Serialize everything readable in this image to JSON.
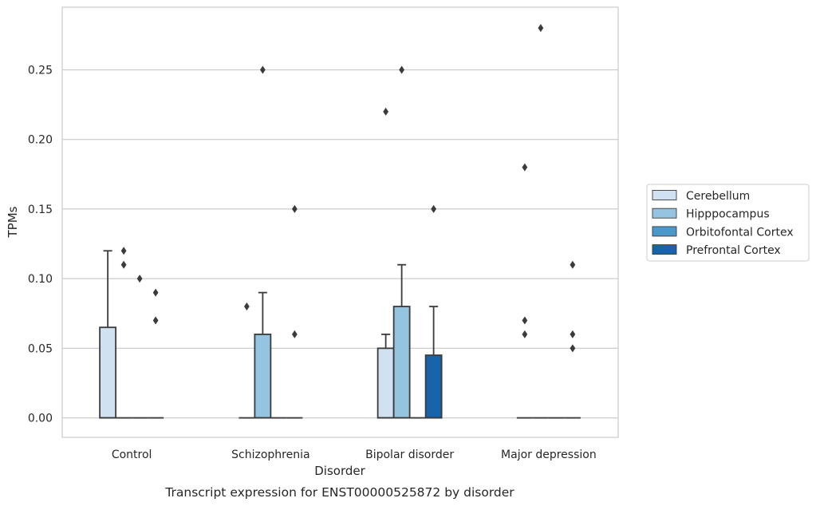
{
  "chart_data": {
    "type": "box",
    "title": "",
    "caption": "Transcript expression for ENST00000525872 by disorder",
    "xlabel": "Disorder",
    "ylabel": "TPMs",
    "ylim": [
      -0.014,
      0.295
    ],
    "yticks": [
      0.0,
      0.05,
      0.1,
      0.15,
      0.2,
      0.25
    ],
    "ytick_labels": [
      "0.00",
      "0.05",
      "0.10",
      "0.15",
      "0.20",
      "0.25"
    ],
    "grid": true,
    "legend_position": "right",
    "categories": [
      "Control",
      "Schizophrenia",
      "Bipolar disorder",
      "Major depression"
    ],
    "series": [
      {
        "name": "Cerebellum",
        "color": "#d0e1f2",
        "boxes": [
          {
            "q1": 0.0,
            "median": 0.0,
            "q3": 0.065,
            "whisker_low": 0.0,
            "whisker_high": 0.12,
            "outliers": []
          },
          {
            "q1": 0.0,
            "median": 0.0,
            "q3": 0.0,
            "whisker_low": 0.0,
            "whisker_high": 0.0,
            "outliers": [
              0.08
            ]
          },
          {
            "q1": 0.0,
            "median": 0.0,
            "q3": 0.05,
            "whisker_low": 0.0,
            "whisker_high": 0.06,
            "outliers": [
              0.22
            ]
          },
          {
            "q1": 0.0,
            "median": 0.0,
            "q3": 0.0,
            "whisker_low": 0.0,
            "whisker_high": 0.0,
            "outliers": [
              0.18,
              0.07,
              0.06
            ]
          }
        ]
      },
      {
        "name": "Hipppocampus",
        "color": "#94c4df",
        "boxes": [
          {
            "q1": 0.0,
            "median": 0.0,
            "q3": 0.0,
            "whisker_low": 0.0,
            "whisker_high": 0.0,
            "outliers": [
              0.12,
              0.11
            ]
          },
          {
            "q1": 0.0,
            "median": 0.0,
            "q3": 0.06,
            "whisker_low": 0.0,
            "whisker_high": 0.09,
            "outliers": [
              0.25
            ]
          },
          {
            "q1": 0.0,
            "median": 0.0,
            "q3": 0.08,
            "whisker_low": 0.0,
            "whisker_high": 0.11,
            "outliers": [
              0.25
            ]
          },
          {
            "q1": 0.0,
            "median": 0.0,
            "q3": 0.0,
            "whisker_low": 0.0,
            "whisker_high": 0.0,
            "outliers": [
              0.28
            ]
          }
        ]
      },
      {
        "name": "Orbitofontal Cortex",
        "color": "#4a98c9",
        "boxes": [
          {
            "q1": 0.0,
            "median": 0.0,
            "q3": 0.0,
            "whisker_low": 0.0,
            "whisker_high": 0.0,
            "outliers": [
              0.1
            ]
          },
          {
            "q1": 0.0,
            "median": 0.0,
            "q3": 0.0,
            "whisker_low": 0.0,
            "whisker_high": 0.0,
            "outliers": []
          },
          {
            "q1": 0.0,
            "median": 0.0,
            "q3": 0.0,
            "whisker_low": 0.0,
            "whisker_high": 0.0,
            "outliers": []
          },
          {
            "q1": 0.0,
            "median": 0.0,
            "q3": 0.0,
            "whisker_low": 0.0,
            "whisker_high": 0.0,
            "outliers": []
          }
        ]
      },
      {
        "name": "Prefrontal Cortex",
        "color": "#1764ab",
        "boxes": [
          {
            "q1": 0.0,
            "median": 0.0,
            "q3": 0.0,
            "whisker_low": 0.0,
            "whisker_high": 0.0,
            "outliers": [
              0.09,
              0.07
            ]
          },
          {
            "q1": 0.0,
            "median": 0.0,
            "q3": 0.0,
            "whisker_low": 0.0,
            "whisker_high": 0.0,
            "outliers": [
              0.15,
              0.06
            ]
          },
          {
            "q1": 0.0,
            "median": 0.0,
            "q3": 0.045,
            "whisker_low": 0.0,
            "whisker_high": 0.08,
            "outliers": [
              0.15
            ]
          },
          {
            "q1": 0.0,
            "median": 0.0,
            "q3": 0.0,
            "whisker_low": 0.0,
            "whisker_high": 0.0,
            "outliers": [
              0.11,
              0.06,
              0.05
            ]
          }
        ]
      }
    ]
  }
}
